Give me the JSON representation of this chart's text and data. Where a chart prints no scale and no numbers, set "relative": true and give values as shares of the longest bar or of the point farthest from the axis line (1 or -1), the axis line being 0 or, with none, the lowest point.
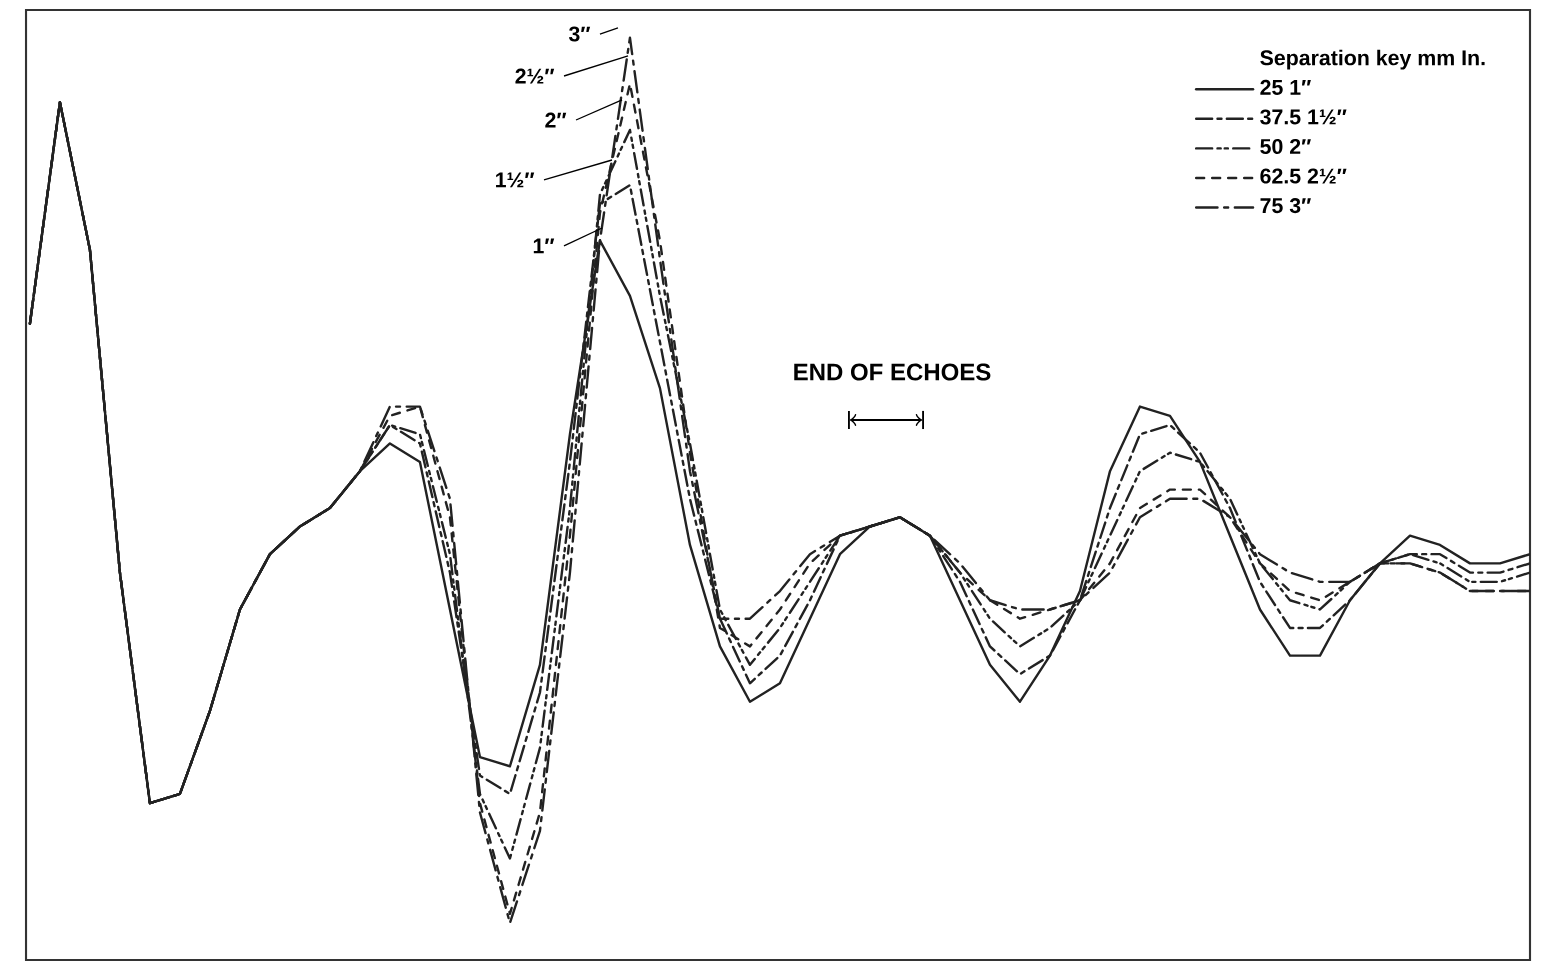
{
  "chart_data": {
    "type": "line",
    "relative": true,
    "legend": "top right",
    "legend_title": "Separation key mm In.",
    "categories": [
      null,
      null,
      null,
      null,
      null,
      null,
      null,
      null,
      null,
      null,
      null,
      null,
      null,
      null,
      null,
      null,
      null,
      null,
      null,
      null,
      null,
      null,
      null,
      null,
      null,
      null,
      null,
      null,
      null,
      null,
      null,
      null,
      null,
      null,
      null,
      null,
      null,
      null,
      null,
      null,
      null,
      null,
      null,
      null,
      null,
      null,
      null,
      null,
      null,
      null,
      null
    ],
    "series": [
      {
        "name": "25 1″",
        "color": "#222222",
        "line_style": "solid",
        "values": [
          0.69,
          0.93,
          0.77,
          0.42,
          0.17,
          0.18,
          0.27,
          0.38,
          0.44,
          0.47,
          0.49,
          0.53,
          0.56,
          0.54,
          0.38,
          0.22,
          0.21,
          0.32,
          0.57,
          0.78,
          0.72,
          0.62,
          0.45,
          0.34,
          0.28,
          0.3,
          0.37,
          0.44,
          0.47,
          0.48,
          0.46,
          0.39,
          0.32,
          0.28,
          0.33,
          0.4,
          0.53,
          0.6,
          0.59,
          0.54,
          0.46,
          0.38,
          0.33,
          0.33,
          0.39,
          0.43,
          0.46,
          0.45,
          0.43,
          0.43,
          0.44
        ]
      },
      {
        "name": "37.5 1½″",
        "color": "#222222",
        "line_style": "dashdotted",
        "values": [
          0.69,
          0.93,
          0.77,
          0.42,
          0.17,
          0.18,
          0.27,
          0.38,
          0.44,
          0.47,
          0.49,
          0.53,
          0.58,
          0.56,
          0.42,
          0.2,
          0.18,
          0.29,
          0.54,
          0.82,
          0.84,
          0.67,
          0.5,
          0.37,
          0.3,
          0.33,
          0.39,
          0.46,
          0.47,
          0.48,
          0.46,
          0.41,
          0.34,
          0.31,
          0.33,
          0.39,
          0.49,
          0.57,
          0.58,
          0.55,
          0.49,
          0.41,
          0.36,
          0.36,
          0.39,
          0.43,
          0.44,
          0.44,
          0.42,
          0.42,
          0.43
        ]
      },
      {
        "name": "50 2″",
        "color": "#222222",
        "line_style": "dashdotdotted",
        "values": [
          0.69,
          0.93,
          0.77,
          0.42,
          0.17,
          0.18,
          0.27,
          0.38,
          0.44,
          0.47,
          0.49,
          0.53,
          0.58,
          0.57,
          0.44,
          0.18,
          0.11,
          0.23,
          0.49,
          0.83,
          0.9,
          0.72,
          0.56,
          0.38,
          0.32,
          0.36,
          0.41,
          0.46,
          0.47,
          0.48,
          0.46,
          0.42,
          0.37,
          0.34,
          0.36,
          0.39,
          0.46,
          0.53,
          0.55,
          0.54,
          0.5,
          0.43,
          0.39,
          0.38,
          0.41,
          0.43,
          0.44,
          0.43,
          0.41,
          0.41,
          0.42
        ]
      },
      {
        "name": "62.5 2½″",
        "color": "#222222",
        "line_style": "dashed",
        "values": [
          0.69,
          0.93,
          0.77,
          0.42,
          0.17,
          0.18,
          0.27,
          0.38,
          0.44,
          0.47,
          0.49,
          0.53,
          0.59,
          0.6,
          0.48,
          0.17,
          0.05,
          0.16,
          0.46,
          0.81,
          0.95,
          0.78,
          0.55,
          0.36,
          0.34,
          0.38,
          0.43,
          0.46,
          0.47,
          0.48,
          0.46,
          0.42,
          0.39,
          0.37,
          0.38,
          0.39,
          0.43,
          0.49,
          0.51,
          0.51,
          0.48,
          0.43,
          0.4,
          0.39,
          0.41,
          0.43,
          0.43,
          0.42,
          0.4,
          0.4,
          0.4
        ]
      },
      {
        "name": "75 3″",
        "color": "#222222",
        "line_style": "loosely dashdotted",
        "values": [
          0.69,
          0.93,
          0.77,
          0.42,
          0.17,
          0.18,
          0.27,
          0.38,
          0.44,
          0.47,
          0.49,
          0.53,
          0.6,
          0.6,
          0.5,
          0.16,
          0.04,
          0.14,
          0.42,
          0.78,
          1.0,
          0.76,
          0.53,
          0.37,
          0.37,
          0.4,
          0.44,
          0.46,
          0.47,
          0.48,
          0.46,
          0.43,
          0.39,
          0.38,
          0.38,
          0.39,
          0.42,
          0.48,
          0.5,
          0.5,
          0.48,
          0.44,
          0.42,
          0.41,
          0.41,
          0.43,
          0.43,
          0.42,
          0.4,
          0.4,
          0.4
        ]
      }
    ],
    "annotations": [
      "3″",
      "2½″",
      "2″",
      "1½″",
      "1″",
      "END OF ECHOES"
    ]
  }
}
